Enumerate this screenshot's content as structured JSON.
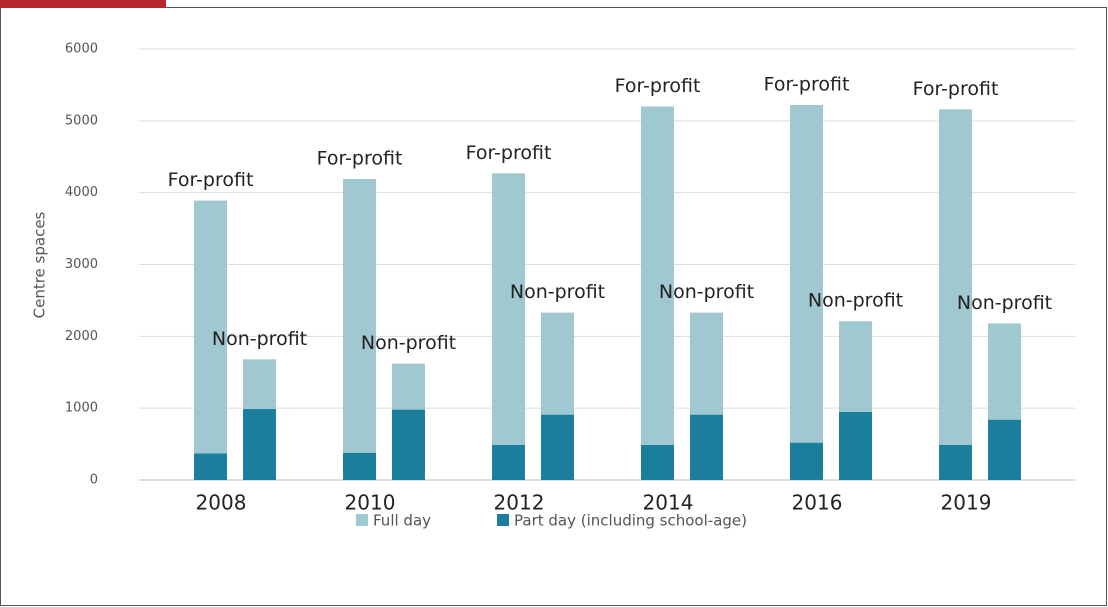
{
  "chart_data": {
    "type": "grouped-stacked-bar",
    "y_label": "Centre spaces",
    "categories": [
      "2008",
      "2010",
      "2012",
      "2014",
      "2016",
      "2019"
    ],
    "groups": [
      "For-profit",
      "Non-profit"
    ],
    "series": [
      {
        "name": "Part day (including school-age)",
        "color": "#1b7e9c",
        "values": [
          [
            370,
            990
          ],
          [
            380,
            980
          ],
          [
            490,
            910
          ],
          [
            490,
            910
          ],
          [
            520,
            950
          ],
          [
            490,
            840
          ]
        ]
      },
      {
        "name": "Full day",
        "color": "#a0c8d0",
        "values": [
          [
            3520,
            690
          ],
          [
            3810,
            640
          ],
          [
            3780,
            1420
          ],
          [
            4710,
            1420
          ],
          [
            4700,
            1260
          ],
          [
            4670,
            1340
          ]
        ]
      }
    ],
    "legend_order": [
      1,
      0
    ],
    "ylim": [
      0,
      6000
    ],
    "yticks": [
      0,
      1000,
      2000,
      3000,
      4000,
      5000,
      6000
    ],
    "grid": true
  }
}
